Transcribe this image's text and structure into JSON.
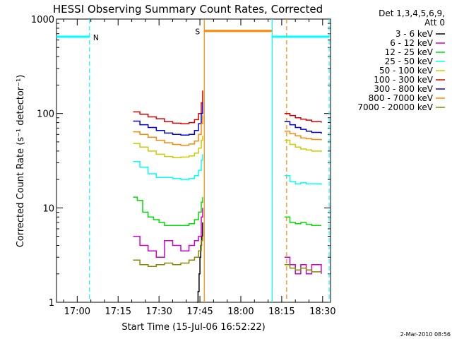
{
  "chart_data": {
    "type": "line",
    "title": "HESSI Observing Summary Count Rates, Corrected",
    "xlabel": "Start Time (15-Jul-06 16:52:22)",
    "ylabel": "Corrected Count Rate (s⁻¹ detector⁻¹)",
    "yscale": "log",
    "ylim": [
      1,
      1000
    ],
    "xlim_minutes": [
      52.4,
      152.9
    ],
    "x_ticks": [
      {
        "label": "17:00",
        "minutes": 60
      },
      {
        "label": "17:15",
        "minutes": 75
      },
      {
        "label": "17:30",
        "minutes": 90
      },
      {
        "label": "17:45",
        "minutes": 105
      },
      {
        "label": "18:00",
        "minutes": 120
      },
      {
        "label": "18:15",
        "minutes": 135
      },
      {
        "label": "18:30",
        "minutes": 150
      }
    ],
    "y_ticks": [
      {
        "label": "1",
        "value": 1
      },
      {
        "label": "10",
        "value": 10
      },
      {
        "label": "100",
        "value": 100
      },
      {
        "label": "1000",
        "value": 1000
      }
    ],
    "legend": {
      "header": [
        "Det 1,3,4,5,6,9,",
        "Att 0"
      ],
      "position": "right"
    },
    "series": [
      {
        "name": "3 - 6 keV",
        "color": "#000000",
        "points": [
          [
            104.0,
            1.0
          ],
          [
            104.3,
            1.3
          ],
          [
            104.7,
            2.0
          ],
          [
            105.0,
            3.0
          ],
          [
            105.3,
            4.0
          ],
          [
            105.6,
            5.0
          ],
          [
            106.0,
            7.0
          ]
        ]
      },
      {
        "name": "6 - 12 keV",
        "color": "#cc00cc",
        "points": [
          [
            80.5,
            5.0
          ],
          [
            83.0,
            4.0
          ],
          [
            86.0,
            3.5
          ],
          [
            89.0,
            3.0
          ],
          [
            92.0,
            4.5
          ],
          [
            95.0,
            4.0
          ],
          [
            98.0,
            3.5
          ],
          [
            101.0,
            4.0
          ],
          [
            103.0,
            4.5
          ],
          [
            104.5,
            5.0
          ],
          [
            105.5,
            8.0
          ],
          [
            106.0,
            10.0
          ],
          [
            136.0,
            3.0
          ],
          [
            138.0,
            2.5
          ],
          [
            140.0,
            2.0
          ],
          [
            142.0,
            2.5
          ],
          [
            144.0,
            2.0
          ],
          [
            146.0,
            2.5
          ],
          [
            149.5,
            2.0
          ]
        ]
      },
      {
        "name": "12 - 25 keV",
        "color": "#00dd00",
        "points": [
          [
            80.5,
            13.0
          ],
          [
            82.0,
            12.0
          ],
          [
            84.0,
            9.0
          ],
          [
            86.0,
            8.0
          ],
          [
            88.0,
            7.5
          ],
          [
            90.0,
            7.0
          ],
          [
            92.0,
            6.5
          ],
          [
            95.0,
            6.5
          ],
          [
            98.0,
            6.5
          ],
          [
            101.0,
            6.8
          ],
          [
            103.0,
            7.5
          ],
          [
            104.5,
            9.0
          ],
          [
            105.5,
            11.5
          ],
          [
            106.0,
            13.0
          ],
          [
            136.0,
            8.0
          ],
          [
            138.0,
            7.0
          ],
          [
            140.0,
            6.8
          ],
          [
            142.0,
            7.0
          ],
          [
            144.0,
            6.7
          ],
          [
            146.0,
            6.5
          ],
          [
            149.5,
            6.5
          ]
        ]
      },
      {
        "name": "25 - 50 keV",
        "color": "#00ffff",
        "points": [
          [
            80.5,
            31.0
          ],
          [
            83.0,
            27.0
          ],
          [
            86.0,
            23.0
          ],
          [
            89.0,
            21.0
          ],
          [
            92.0,
            21.0
          ],
          [
            95.0,
            20.5
          ],
          [
            98.0,
            20.0
          ],
          [
            101.0,
            20.5
          ],
          [
            103.0,
            22.0
          ],
          [
            104.5,
            25.0
          ],
          [
            105.5,
            32.0
          ],
          [
            106.0,
            37.0
          ],
          [
            136.0,
            22.0
          ],
          [
            138.0,
            19.0
          ],
          [
            140.0,
            18.0
          ],
          [
            142.0,
            18.5
          ],
          [
            144.0,
            18.0
          ],
          [
            146.0,
            18.0
          ],
          [
            149.5,
            17.5
          ]
        ]
      },
      {
        "name": "50 - 100 keV",
        "color": "#cccc00",
        "points": [
          [
            80.5,
            48.0
          ],
          [
            83.0,
            44.0
          ],
          [
            86.0,
            40.0
          ],
          [
            89.0,
            37.0
          ],
          [
            92.0,
            35.0
          ],
          [
            95.0,
            34.0
          ],
          [
            98.0,
            34.5
          ],
          [
            101.0,
            35.5
          ],
          [
            103.0,
            38.0
          ],
          [
            104.5,
            43.0
          ],
          [
            105.5,
            52.0
          ],
          [
            106.0,
            58.0
          ],
          [
            136.0,
            52.0
          ],
          [
            138.0,
            47.0
          ],
          [
            140.0,
            44.0
          ],
          [
            142.0,
            42.0
          ],
          [
            144.0,
            41.0
          ],
          [
            146.0,
            40.0
          ],
          [
            149.5,
            39.0
          ]
        ]
      },
      {
        "name": "100 - 300 keV",
        "color": "#dd0000",
        "points": [
          [
            80.5,
            104.0
          ],
          [
            83.0,
            98.0
          ],
          [
            86.0,
            92.0
          ],
          [
            89.0,
            88.0
          ],
          [
            92.0,
            82.0
          ],
          [
            95.0,
            79.0
          ],
          [
            98.0,
            78.0
          ],
          [
            101.0,
            80.0
          ],
          [
            103.0,
            86.0
          ],
          [
            104.5,
            100.0
          ],
          [
            105.5,
            130.0
          ],
          [
            106.0,
            175.0
          ],
          [
            136.0,
            100.0
          ],
          [
            138.0,
            95.0
          ],
          [
            140.0,
            90.0
          ],
          [
            142.0,
            87.0
          ],
          [
            144.0,
            85.0
          ],
          [
            146.0,
            82.0
          ],
          [
            149.5,
            80.0
          ]
        ]
      },
      {
        "name": "300 - 800 keV",
        "color": "#0000dd",
        "points": [
          [
            80.5,
            83.0
          ],
          [
            83.0,
            76.0
          ],
          [
            86.0,
            71.0
          ],
          [
            89.0,
            66.0
          ],
          [
            92.0,
            62.0
          ],
          [
            95.0,
            60.0
          ],
          [
            98.0,
            59.0
          ],
          [
            101.0,
            60.0
          ],
          [
            103.0,
            66.0
          ],
          [
            104.5,
            78.0
          ],
          [
            105.5,
            100.0
          ],
          [
            106.0,
            130.0
          ],
          [
            136.0,
            82.0
          ],
          [
            138.0,
            76.0
          ],
          [
            140.0,
            71.0
          ],
          [
            142.0,
            68.0
          ],
          [
            144.0,
            65.0
          ],
          [
            146.0,
            63.0
          ],
          [
            149.5,
            61.0
          ]
        ]
      },
      {
        "name": "800 - 7000 keV",
        "color": "#ff8800",
        "points": [
          [
            80.5,
            64.0
          ],
          [
            83.0,
            60.0
          ],
          [
            86.0,
            56.0
          ],
          [
            89.0,
            52.0
          ],
          [
            92.0,
            49.0
          ],
          [
            95.0,
            47.0
          ],
          [
            98.0,
            46.0
          ],
          [
            101.0,
            47.5
          ],
          [
            103.0,
            51.0
          ],
          [
            104.5,
            60.0
          ],
          [
            105.5,
            78.0
          ],
          [
            106.0,
            96.0
          ],
          [
            136.0,
            65.0
          ],
          [
            138.0,
            61.0
          ],
          [
            140.0,
            58.0
          ],
          [
            142.0,
            55.0
          ],
          [
            144.0,
            54.0
          ],
          [
            146.0,
            53.0
          ],
          [
            149.5,
            52.0
          ]
        ]
      },
      {
        "name": "7000 - 20000 keV",
        "color": "#888800",
        "points": [
          [
            80.5,
            2.8
          ],
          [
            83.0,
            2.5
          ],
          [
            86.0,
            2.4
          ],
          [
            89.0,
            2.5
          ],
          [
            92.0,
            2.6
          ],
          [
            95.0,
            2.5
          ],
          [
            98.0,
            2.6
          ],
          [
            101.0,
            2.8
          ],
          [
            103.0,
            3.0
          ],
          [
            104.5,
            3.5
          ],
          [
            105.5,
            4.5
          ],
          [
            106.0,
            5.0
          ],
          [
            136.0,
            2.5
          ],
          [
            138.0,
            2.3
          ],
          [
            140.0,
            2.2
          ],
          [
            142.0,
            2.3
          ],
          [
            144.0,
            2.2
          ],
          [
            146.0,
            2.1
          ],
          [
            149.5,
            2.1
          ]
        ]
      }
    ],
    "annotations": {
      "vertical_lines": [
        {
          "minutes": 64.5,
          "color": "#00ffff",
          "style": "dashed"
        },
        {
          "minutes": 106.6,
          "color": "#ff8800",
          "style": "solid"
        },
        {
          "minutes": 131.5,
          "color": "#00ffff",
          "style": "solid"
        },
        {
          "minutes": 136.8,
          "color": "#ff8800",
          "style": "dashed"
        },
        {
          "minutes": 152.4,
          "color": "#00ffff",
          "style": "dashed"
        }
      ],
      "bars": [
        {
          "label": "N",
          "from": 52.4,
          "to": 64.5,
          "y": 650,
          "color": "#00ffff"
        },
        {
          "label": "S",
          "from": 106.6,
          "to": 131.5,
          "y": 750,
          "color": "#ff8800"
        },
        {
          "label": "",
          "from": 131.5,
          "to": 152.4,
          "y": 650,
          "color": "#00ffff"
        }
      ]
    },
    "grid": false
  },
  "footer": {
    "date_stamp": "2-Mar-2010 08:56"
  }
}
